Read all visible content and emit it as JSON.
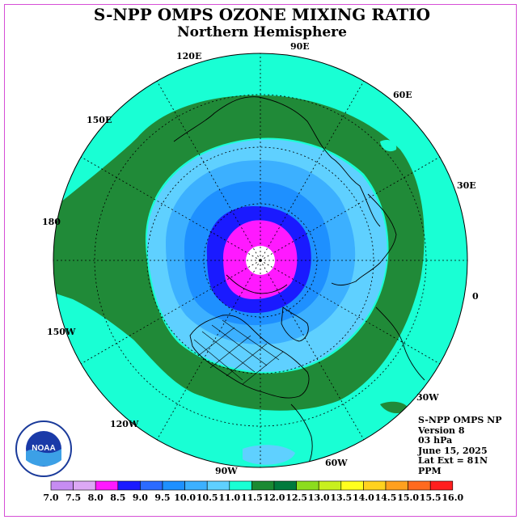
{
  "title": "S-NPP OMPS OZONE MIXING RATIO",
  "subtitle": "Northern Hemisphere",
  "info": {
    "product": "S-NPP OMPS NP",
    "version": "Version 8",
    "level": "03 hPa",
    "date": "June 15, 2025",
    "lat_ext": "Lat Ext = 81N",
    "units": "PPM"
  },
  "logo_text": "NOAA",
  "longitude_labels": {
    "lon_120e": "120E",
    "lon_90e": "90E",
    "lon_60e": "60E",
    "lon_30e": "30E",
    "lon_0": "0",
    "lon_150e": "150E",
    "lon_180": "180",
    "lon_150w": "150W",
    "lon_120w": "120W",
    "lon_90w": "90W",
    "lon_60w": "60W",
    "lon_30w": "30W"
  },
  "colorbar": {
    "ticks": [
      "7.0",
      "7.5",
      "8.0",
      "8.5",
      "9.0",
      "9.5",
      "10.0",
      "10.5",
      "11.0",
      "11.5",
      "12.0",
      "12.5",
      "13.0",
      "13.5",
      "14.0",
      "14.5",
      "15.0",
      "15.5",
      "16.0"
    ],
    "colors": [
      "#c68cf2",
      "#dca8f5",
      "#ff19ff",
      "#1a1aff",
      "#2b6bff",
      "#1e90ff",
      "#3cb0ff",
      "#5fd0ff",
      "#19ffd4",
      "#1a8a33",
      "#007a3d",
      "#8cdc1e",
      "#c8f01e",
      "#ffff1e",
      "#ffd21e",
      "#ffa01e",
      "#ff6a1e",
      "#ff1e1e",
      "#8b5a3c"
    ]
  },
  "map_colors": {
    "bg_outside": "#19ffd4",
    "green_band": "#208a38",
    "light_blue": "#5fd0ff",
    "mid_blue": "#3cb0ff",
    "blue": "#1e90ff",
    "deep_blue": "#1a1aff",
    "magenta": "#ff19ff",
    "pole": "#ffffff"
  }
}
